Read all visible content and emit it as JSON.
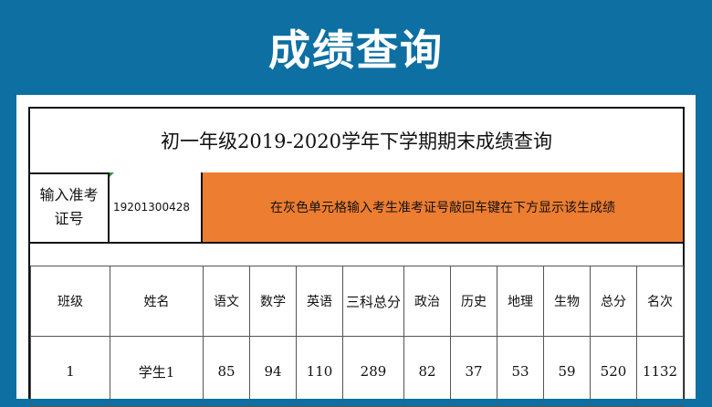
{
  "banner": {
    "title": "成绩查询"
  },
  "sheet": {
    "title": "初一年级2019-2020学年下学期期末成绩查询",
    "id_label": "输入准考证号",
    "id_value": "19201300428",
    "instruction": "在灰色单元格输入考生准考证号敲回车键在下方显示该生成绩"
  },
  "table": {
    "headers": [
      "班级",
      "姓名",
      "语文",
      "数学",
      "英语",
      "三科总分",
      "政治",
      "历史",
      "地理",
      "生物",
      "总分",
      "名次"
    ],
    "row": [
      "1",
      "学生1",
      "85",
      "94",
      "110",
      "289",
      "82",
      "37",
      "53",
      "59",
      "520",
      "1132"
    ]
  },
  "colors": {
    "banner_bg": "#0d6fa2",
    "instruction_bg": "#ed7d31"
  }
}
